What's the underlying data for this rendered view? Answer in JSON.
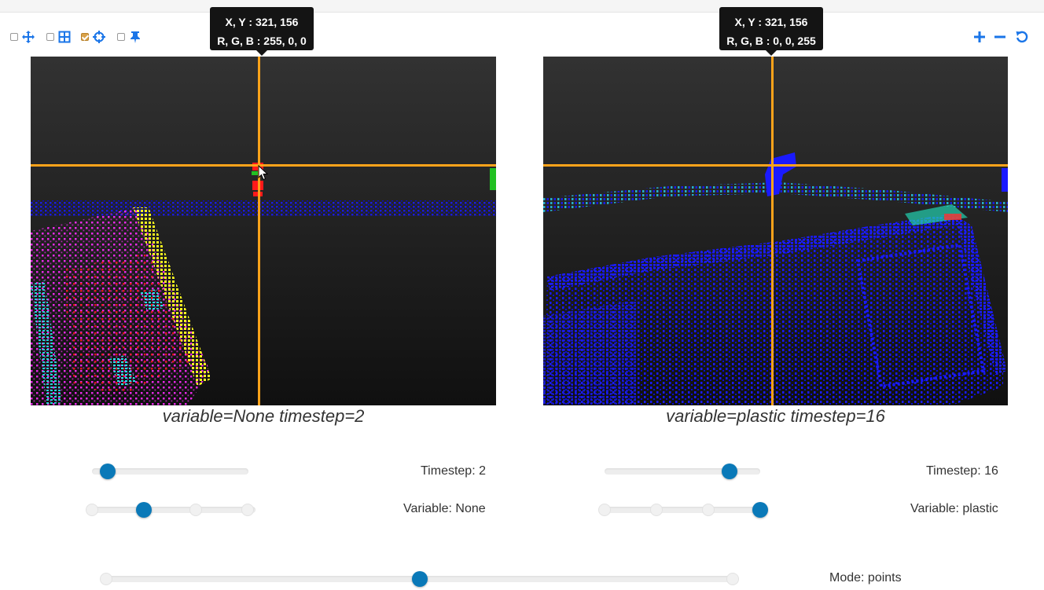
{
  "toolbar": {
    "left_tools": [
      {
        "icon": "move-arrows-icon",
        "checked": false
      },
      {
        "icon": "grid-icon",
        "checked": false
      },
      {
        "icon": "crosshair-icon",
        "checked": true
      },
      {
        "icon": "pin-icon",
        "checked": false
      }
    ],
    "right_tools": [
      "zoom-in-icon",
      "zoom-out-icon",
      "reset-icon"
    ],
    "accent_color": "#1a75e8"
  },
  "left_view": {
    "tooltip": {
      "xy": "X, Y : 321, 156",
      "rgb": "R, G, B : 255, 0, 0"
    },
    "caption": "variable=None timestep=2",
    "timestep_label": "Timestep: 2",
    "variable_label": "Variable: None",
    "timestep_value": 2,
    "variable_selected_index": 1,
    "variable_option_count": 4
  },
  "right_view": {
    "tooltip": {
      "xy": "X, Y : 321, 156",
      "rgb": "R, G, B : 0, 0, 255"
    },
    "caption": "variable=plastic timestep=16",
    "timestep_label": "Timestep: 16",
    "variable_label": "Variable: plastic",
    "timestep_value": 16,
    "variable_selected_index": 3,
    "variable_option_count": 4
  },
  "mode": {
    "label": "Mode: points",
    "selected_index": 1,
    "option_count": 3
  },
  "crosshair_color": "#ffa31a",
  "slider_knob_color": "#0a79b8"
}
